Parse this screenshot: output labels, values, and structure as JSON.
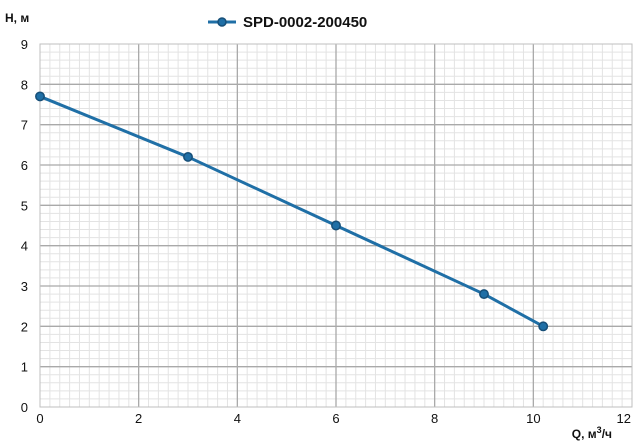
{
  "chart_data": {
    "type": "line",
    "title": "",
    "xlabel": "Q, м",
    "xlabel_sup": "3",
    "xlabel_suffix": "/ч",
    "ylabel": "H, м",
    "xlim": [
      0,
      12
    ],
    "ylim": [
      0,
      9
    ],
    "x_ticks": [
      0,
      2,
      4,
      6,
      8,
      10,
      12
    ],
    "y_ticks": [
      0,
      1,
      2,
      3,
      4,
      5,
      6,
      7,
      8,
      9
    ],
    "grid": true,
    "legend": "top-center",
    "series": [
      {
        "name": "SPD-0002-200450",
        "color": "#1f6fa6",
        "x": [
          0,
          3,
          6,
          9,
          10.2
        ],
        "y": [
          7.7,
          6.2,
          4.5,
          2.8,
          2.0
        ]
      }
    ]
  }
}
